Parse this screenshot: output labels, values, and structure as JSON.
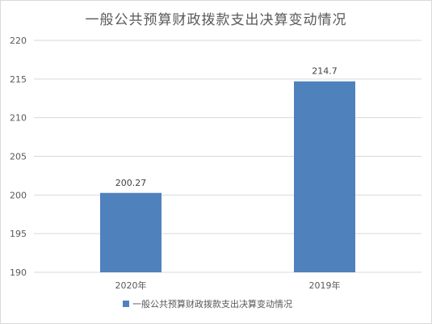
{
  "chart_data": {
    "type": "bar",
    "title": "一般公共预算财政拨款支出决算变动情况",
    "categories": [
      "2020年",
      "2019年"
    ],
    "series": [
      {
        "name": "一般公共预算财政拨款支出决算变动情况",
        "values": [
          200.27,
          214.7
        ],
        "value_labels": [
          "200.27",
          "214.7"
        ],
        "color": "#4f81bd"
      }
    ],
    "ylim": [
      190,
      220
    ],
    "yticks": [
      190,
      195,
      200,
      205,
      210,
      215,
      220
    ],
    "grid": true,
    "legend_position": "bottom"
  }
}
